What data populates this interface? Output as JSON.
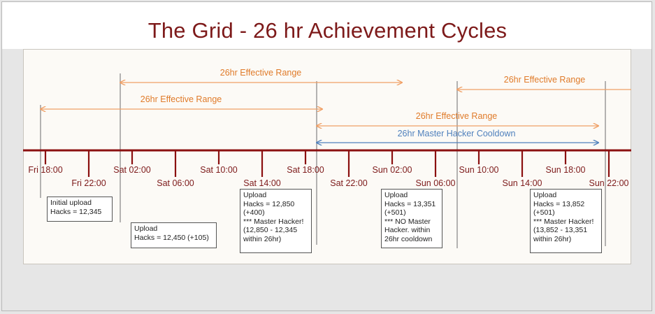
{
  "title": "The Grid - 26 hr Achievement Cycles",
  "colors": {
    "title": "#7d1a1a",
    "axis": "#8b1010",
    "range_orange": "#f0a066",
    "range_orange_text": "#e07b2a",
    "range_blue": "#4f81bd",
    "event_line": "#8c8c8c",
    "tick_text": "#7d1a1a"
  },
  "axis": {
    "ticks_upper": [
      "Fri 18:00",
      "Sat 02:00",
      "Sat 10:00",
      "Sat 18:00",
      "Sun 02:00",
      "Sun 10:00",
      "Sun 18:00"
    ],
    "ticks_lower": [
      "Fri 22:00",
      "Sat 06:00",
      "Sat 14:00",
      "Sat 22:00",
      "Sun 06:00",
      "Sun 14:00",
      "Sun 22:00"
    ]
  },
  "ranges": [
    {
      "label": "26hr Effective Range",
      "kind": "effective"
    },
    {
      "label": "26hr Effective Range",
      "kind": "effective"
    },
    {
      "label": "26hr Effective Range",
      "kind": "effective"
    },
    {
      "label": "26hr Master Hacker Cooldown",
      "kind": "cooldown"
    },
    {
      "label": "26hr Effective Range",
      "kind": "effective"
    }
  ],
  "notes": [
    {
      "text": "Initial upload\nHacks = 12,345"
    },
    {
      "text": "Upload\nHacks = 12,450 (+105)"
    },
    {
      "text": "Upload\nHacks = 12,850\n(+400)\n*** Master Hacker!\n(12,850 - 12,345\nwithin 26hr)"
    },
    {
      "text": "Upload\nHacks = 13,351\n(+501)\n*** NO Master\nHacker. within\n26hr cooldown"
    },
    {
      "text": "Upload\nHacks = 13,852\n(+501)\n*** Master Hacker!\n(13,852 - 13,351\nwithin 26hr)"
    }
  ]
}
